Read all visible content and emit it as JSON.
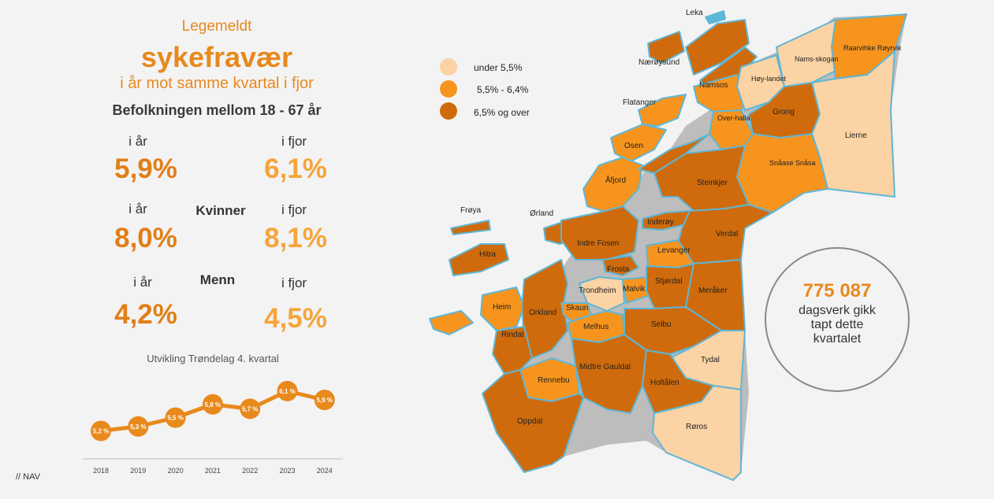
{
  "header": {
    "line1": "Legemeldt",
    "line2": "sykefravær",
    "line3": "i år mot samme kvartal i fjor",
    "population": "Befolkningen mellom 18 - 67 år"
  },
  "stats": {
    "current_label": "i år",
    "previous_label": "i fjor",
    "total": {
      "current": "5,9%",
      "previous": "6,1%"
    },
    "women": {
      "label": "Kvinner",
      "current": "8,0%",
      "previous": "8,1%"
    },
    "men": {
      "label": "Menn",
      "current": "4,2%",
      "previous": "4,5%"
    }
  },
  "chart_data": {
    "type": "line",
    "title": "Utvikling Trøndelag 4. kvartal",
    "x": [
      "2018",
      "2019",
      "2020",
      "2021",
      "2022",
      "2023",
      "2024"
    ],
    "values": [
      5.2,
      5.3,
      5.5,
      5.8,
      5.7,
      6.1,
      5.9
    ],
    "labels": [
      "5,2 %",
      "5,3 %",
      "5,5 %",
      "5,8 %",
      "5,7 %",
      "6,1 %",
      "5,9 %"
    ],
    "ylim": [
      4.8,
      6.4
    ],
    "color": "#e8891c"
  },
  "legend": {
    "items": [
      {
        "label": "under 5,5%",
        "color": "#fbd3a4"
      },
      {
        "label": "5,5% - 6,4%",
        "color": "#f7941d"
      },
      {
        "label": "6,5% og over",
        "color": "#cf6b0c"
      }
    ]
  },
  "map": {
    "stroke": "#5fb6d6",
    "municipalities": {
      "leka": "Leka",
      "naeroysund": "Nærøysund",
      "namsos": "Namsos",
      "flatanger": "Flatanger",
      "hoylandet": "Høy-landet",
      "namsskogan": "Nams-skogan",
      "raarvihke": "Raarvihke Røyrvik",
      "grong": "Grong",
      "overhalla": "Over-halla",
      "lierne": "Lierne",
      "osen": "Osen",
      "afjord": "Åfjord",
      "snaase": "Snåase Snåsa",
      "steinkjer": "Steinkjer",
      "froya": "Frøya",
      "orland": "Ørland",
      "inderoy": "Inderøy",
      "verdal": "Verdal",
      "indre_fosen": "Indre Fosen",
      "hitra": "Hitra",
      "levanger": "Levanger",
      "frosta": "Frosta",
      "trondheim": "Trondheim",
      "malvik": "Malvik",
      "stjordal": "Stjørdal",
      "meraker": "Meråker",
      "heim": "Heim",
      "orkland": "Orkland",
      "skaun": "Skaun",
      "melhus": "Melhus",
      "selbu": "Selbu",
      "rindal": "Rindal",
      "tydal": "Tydal",
      "rennebu": "Rennebu",
      "midtre_gauldal": "Midtre Gauldal",
      "holtalen": "Holtålen",
      "oppdal": "Oppdal",
      "roros": "Røros"
    }
  },
  "callout": {
    "number": "775 087",
    "line1": "dagsverk gikk",
    "line2": "tapt dette",
    "line3": "kvartalet"
  },
  "footer": {
    "logo": "// NAV"
  }
}
